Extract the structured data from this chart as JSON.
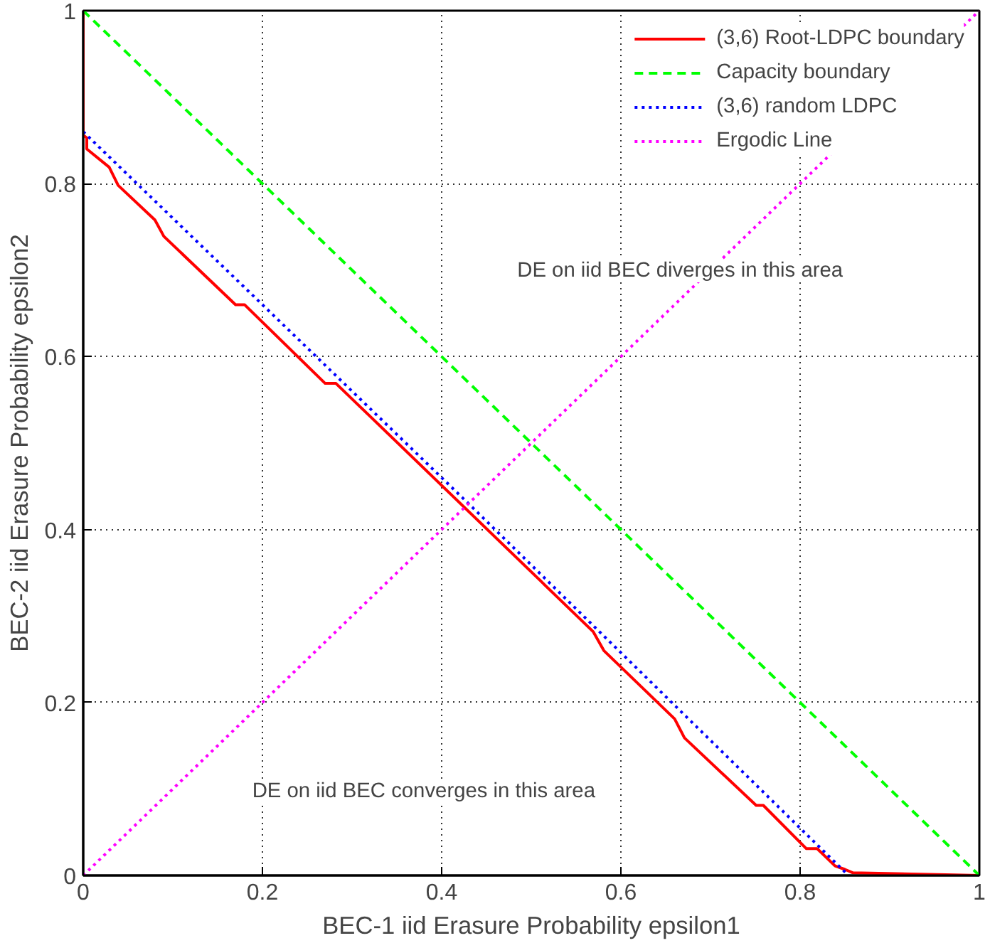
{
  "chart_data": {
    "type": "line",
    "xlabel": "BEC-1 iid Erasure Probability epsilon1",
    "ylabel": "BEC-2 iid Erasure Probability epsilon2",
    "xlim": [
      0,
      1
    ],
    "ylim": [
      0,
      1
    ],
    "xticks": [
      0,
      0.2,
      0.4,
      0.6,
      0.8,
      1
    ],
    "yticks": [
      0,
      0.2,
      0.4,
      0.6,
      0.8,
      1
    ],
    "grid": true,
    "legend": "top right",
    "series": [
      {
        "name": "(3,6) Root-LDPC boundary",
        "color": "#ff0000",
        "line_style": "solid",
        "x": [
          0,
          0,
          0.004,
          0.004,
          0.029,
          0.039,
          0.08,
          0.09,
          0.17,
          0.18,
          0.27,
          0.282,
          0.569,
          0.581,
          0.66,
          0.671,
          0.751,
          0.759,
          0.807,
          0.819,
          0.839,
          0.85,
          0.859,
          1
        ],
        "values": [
          1,
          0.856,
          0.853,
          0.84,
          0.819,
          0.798,
          0.758,
          0.739,
          0.66,
          0.66,
          0.569,
          0.569,
          0.282,
          0.26,
          0.181,
          0.159,
          0.081,
          0.081,
          0.031,
          0.031,
          0.011,
          0.007,
          0.003,
          0
        ]
      },
      {
        "name": "Capacity boundary",
        "color": "#00ff00",
        "line_style": "dashed",
        "x": [
          0,
          1
        ],
        "values": [
          1,
          0
        ]
      },
      {
        "name": "(3,6) random LDPC",
        "color": "#0000ff",
        "line_style": "dotted",
        "x": [
          0,
          0.43,
          0.854
        ],
        "values": [
          0.86,
          0.43,
          0
        ]
      },
      {
        "name": "Ergodic Line",
        "color": "#ff00ff",
        "line_style": "dotted",
        "x": [
          0,
          1
        ],
        "values": [
          0,
          1
        ]
      }
    ],
    "annotations": [
      "DE on iid BEC diverges in this area",
      "DE on iid BEC converges in this area"
    ]
  }
}
